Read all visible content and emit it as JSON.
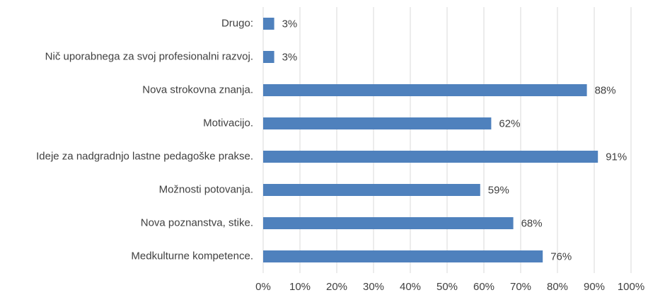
{
  "chart_data": {
    "type": "barh",
    "categories": [
      "Drugo:",
      "Nič uporabnega za svoj profesionalni razvoj.",
      "Nova strokovna znanja.",
      "Motivacijo.",
      "Ideje za nadgradnjo lastne pedagoške prakse.",
      "Možnosti potovanja.",
      "Nova poznanstva, stike.",
      "Medkulturne kompetence."
    ],
    "values": [
      3,
      3,
      88,
      62,
      91,
      59,
      68,
      76
    ],
    "value_labels": [
      "3%",
      "3%",
      "88%",
      "62%",
      "91%",
      "59%",
      "68%",
      "76%"
    ],
    "color": "#4f81bd",
    "xlim": [
      0,
      100
    ],
    "xticks": [
      {
        "value": 0,
        "label": "0%"
      },
      {
        "value": 10,
        "label": "10%"
      },
      {
        "value": 20,
        "label": "20%"
      },
      {
        "value": 30,
        "label": "30%"
      },
      {
        "value": 40,
        "label": "40%"
      },
      {
        "value": 50,
        "label": "50%"
      },
      {
        "value": 60,
        "label": "60%"
      },
      {
        "value": 70,
        "label": "70%"
      },
      {
        "value": 80,
        "label": "80%"
      },
      {
        "value": 90,
        "label": "90%"
      },
      {
        "value": 100,
        "label": "100%"
      }
    ],
    "grid": true
  }
}
